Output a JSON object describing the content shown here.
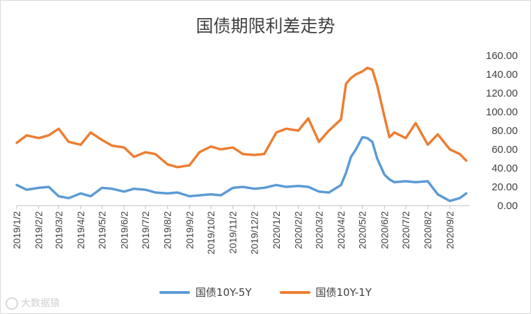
{
  "watermark": {
    "text": "大数据猿"
  },
  "colors": {
    "series_5y": "#5b9bd5",
    "series_1y": "#ed7d31",
    "axis": "#bfbfbf",
    "text": "#404040"
  },
  "chart_data": {
    "type": "line",
    "title": "国债期限利差走势",
    "xlabel": "",
    "ylabel": "",
    "ylim": [
      0,
      160
    ],
    "y_ticks": [
      "0.00",
      "20.00",
      "40.00",
      "60.00",
      "80.00",
      "100.00",
      "120.00",
      "140.00",
      "160.00"
    ],
    "x_ticks": [
      "2019/1/2",
      "2019/2/2",
      "2019/3/2",
      "2019/4/2",
      "2019/5/2",
      "2019/6/2",
      "2019/7/2",
      "2019/8/2",
      "2019/9/2",
      "2019/10/2",
      "2019/11/2",
      "2019/12/2",
      "2020/1/2",
      "2020/2/2",
      "2020/3/2",
      "2020/4/2",
      "2020/5/2",
      "2020/6/2",
      "2020/7/2",
      "2020/8/2",
      "2020/9/2"
    ],
    "grid": false,
    "legend": "bottom",
    "x": [
      "2019/1/2",
      "2019/1/16",
      "2019/2/2",
      "2019/2/16",
      "2019/3/2",
      "2019/3/16",
      "2019/4/2",
      "2019/4/16",
      "2019/5/2",
      "2019/5/16",
      "2019/6/2",
      "2019/6/16",
      "2019/7/2",
      "2019/7/16",
      "2019/8/2",
      "2019/8/16",
      "2019/9/2",
      "2019/9/16",
      "2019/10/2",
      "2019/10/16",
      "2019/11/2",
      "2019/11/16",
      "2019/12/2",
      "2019/12/16",
      "2020/1/2",
      "2020/1/16",
      "2020/2/2",
      "2020/2/16",
      "2020/3/2",
      "2020/3/16",
      "2020/4/2",
      "2020/4/9",
      "2020/4/16",
      "2020/4/23",
      "2020/5/2",
      "2020/5/9",
      "2020/5/16",
      "2020/5/23",
      "2020/6/2",
      "2020/6/9",
      "2020/6/16",
      "2020/7/2",
      "2020/7/16",
      "2020/8/2",
      "2020/8/16",
      "2020/9/2",
      "2020/9/16",
      "2020/9/25"
    ],
    "series": [
      {
        "name": "国债10Y-5Y",
        "values": [
          22,
          17,
          19,
          20,
          10,
          8,
          13,
          10,
          19,
          18,
          15,
          18,
          17,
          14,
          13,
          14,
          10,
          11,
          12,
          11,
          19,
          20,
          18,
          19,
          22,
          20,
          21,
          20,
          15,
          14,
          22,
          35,
          52,
          60,
          73,
          72,
          68,
          50,
          33,
          28,
          25,
          26,
          25,
          26,
          12,
          5,
          8,
          13
        ]
      },
      {
        "name": "国债10Y-1Y",
        "values": [
          67,
          75,
          72,
          75,
          82,
          68,
          65,
          78,
          70,
          64,
          62,
          52,
          57,
          55,
          44,
          41,
          43,
          57,
          63,
          60,
          62,
          55,
          54,
          55,
          78,
          82,
          80,
          93,
          68,
          80,
          92,
          130,
          136,
          140,
          143,
          147,
          145,
          128,
          95,
          73,
          78,
          72,
          88,
          65,
          76,
          60,
          55,
          48
        ]
      }
    ]
  }
}
